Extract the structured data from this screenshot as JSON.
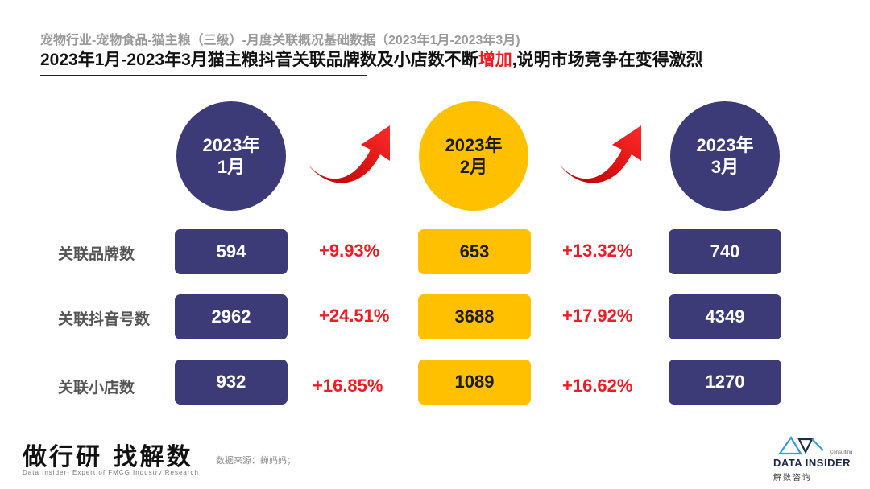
{
  "header": {
    "subtitle": "宠物行业-宠物食品-猫主粮（三级）-月度关联概况基础数据（2023年1月-2023年3月)",
    "title_prefix": "2023年1月-2023年3月猫主粮抖音关联品牌数及小店数不断",
    "title_highlight": "增加",
    "title_suffix": ",说明市场竞争在变得激烈"
  },
  "months": [
    {
      "year": "2023年",
      "month": "1月",
      "color": "#3d3a78"
    },
    {
      "year": "2023年",
      "month": "2月",
      "color": "#ffc000"
    },
    {
      "year": "2023年",
      "month": "3月",
      "color": "#3d3a78"
    }
  ],
  "rows": [
    {
      "label": "关联品牌数",
      "values": [
        "594",
        "653",
        "740"
      ],
      "changes": [
        "+9.93%",
        "+13.32%"
      ]
    },
    {
      "label": "关联抖音号数",
      "values": [
        "2962",
        "3688",
        "4349"
      ],
      "changes": [
        "+24.51%",
        "+17.92%"
      ]
    },
    {
      "label": "关联小店数",
      "values": [
        "932",
        "1089",
        "1270"
      ],
      "changes": [
        "+16.85%",
        "+16.62%"
      ]
    }
  ],
  "icons": {
    "arrow": "curved-up-arrow-icon",
    "logo_mark": "triangle-wave-logo"
  },
  "colors": {
    "navy": "#3d3a78",
    "gold": "#ffc000",
    "red": "#ee1c25"
  },
  "footer": {
    "slogan": "做行研 找解数",
    "slogan_sub": "Data Insider- Expert of FMCG Industry Research",
    "source": "数据来源：蝉妈妈；",
    "logo_consulting": "Consulting",
    "logo_name": "DATA INSIDER",
    "logo_cn": "解数咨询"
  }
}
